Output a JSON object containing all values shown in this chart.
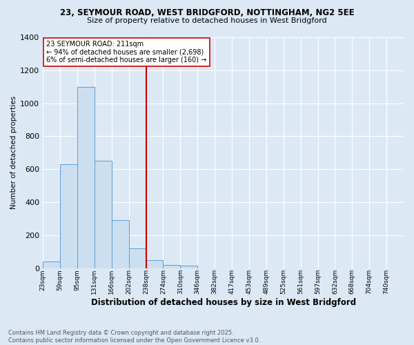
{
  "title_line1": "23, SEYMOUR ROAD, WEST BRIDGFORD, NOTTINGHAM, NG2 5EE",
  "title_line2": "Size of property relative to detached houses in West Bridgford",
  "xlabel": "Distribution of detached houses by size in West Bridgford",
  "ylabel": "Number of detached properties",
  "bin_labels": [
    "23sqm",
    "59sqm",
    "95sqm",
    "131sqm",
    "166sqm",
    "202sqm",
    "238sqm",
    "274sqm",
    "310sqm",
    "346sqm",
    "382sqm",
    "417sqm",
    "453sqm",
    "489sqm",
    "525sqm",
    "561sqm",
    "597sqm",
    "632sqm",
    "668sqm",
    "704sqm",
    "740sqm"
  ],
  "bar_values": [
    40,
    630,
    1100,
    650,
    290,
    120,
    50,
    20,
    15,
    0,
    0,
    0,
    0,
    0,
    0,
    0,
    0,
    0,
    0,
    0,
    0
  ],
  "bar_color": "#ccdff0",
  "bar_edge_color": "#5b9bd5",
  "vline_x_index": 5,
  "vline_color": "#cc0000",
  "annotation_text": "23 SEYMOUR ROAD: 211sqm\n← 94% of detached houses are smaller (2,698)\n6% of semi-detached houses are larger (160) →",
  "annotation_box_color": "#ffffff",
  "annotation_box_edge": "#cc0000",
  "ylim": [
    0,
    1400
  ],
  "yticks": [
    0,
    200,
    400,
    600,
    800,
    1000,
    1200,
    1400
  ],
  "footer_line1": "Contains HM Land Registry data © Crown copyright and database right 2025.",
  "footer_line2": "Contains public sector information licensed under the Open Government Licence v3.0.",
  "bg_color": "#dce9f5",
  "plot_bg_color": "#dce9f5",
  "grid_color": "#ffffff"
}
